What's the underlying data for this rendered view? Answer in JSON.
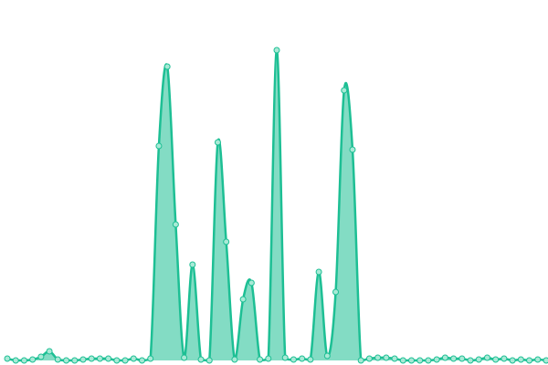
{
  "chart_data": {
    "type": "area",
    "values": [
      2,
      0,
      0,
      1,
      4,
      10,
      1,
      0,
      0,
      1,
      2,
      2,
      2,
      0,
      0,
      2,
      0,
      2,
      235,
      322,
      149,
      3,
      105,
      1,
      0,
      239,
      130,
      1,
      67,
      85,
      1,
      2,
      340,
      3,
      1,
      2,
      1,
      97,
      5,
      75,
      296,
      231,
      0,
      2,
      3,
      3,
      2,
      0,
      0,
      0,
      0,
      1,
      3,
      2,
      2,
      0,
      1,
      3,
      1,
      2,
      0,
      1,
      0,
      1,
      0
    ],
    "ylim": [
      0,
      395
    ],
    "color": "#1dbf94"
  }
}
